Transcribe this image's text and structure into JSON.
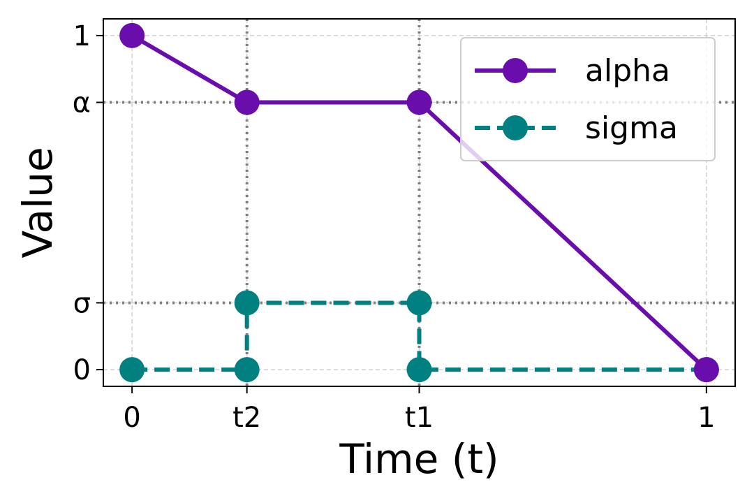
{
  "chart_data": {
    "type": "line",
    "xlabel": "Time (t)",
    "ylabel": "Value",
    "x_ticks": [
      {
        "value": 0,
        "label": "0"
      },
      {
        "value": 0.2,
        "label": "t2"
      },
      {
        "value": 0.5,
        "label": "t1"
      },
      {
        "value": 1,
        "label": "1"
      }
    ],
    "y_ticks": [
      {
        "value": 0,
        "label": "0"
      },
      {
        "value": 0.2,
        "label": "σ"
      },
      {
        "value": 0.8,
        "label": "α"
      },
      {
        "value": 1,
        "label": "1"
      }
    ],
    "xlim": [
      -0.05,
      1.05
    ],
    "ylim": [
      -0.05,
      1.05
    ],
    "grid": true,
    "reference_lines": {
      "vertical": [
        0.2,
        0.5
      ],
      "horizontal": [
        0.2,
        0.8
      ]
    },
    "series": [
      {
        "name": "alpha",
        "style": "solid",
        "color": "#6a0dad",
        "x": [
          0,
          0.2,
          0.5,
          1
        ],
        "y": [
          1,
          0.8,
          0.8,
          0
        ]
      },
      {
        "name": "sigma",
        "style": "dashed",
        "color": "#008080",
        "x": [
          0,
          0.2,
          0.2,
          0.5,
          0.5,
          1
        ],
        "y": [
          0,
          0,
          0.2,
          0.2,
          0,
          0
        ]
      }
    ],
    "legend": {
      "placement": "top-right"
    }
  }
}
